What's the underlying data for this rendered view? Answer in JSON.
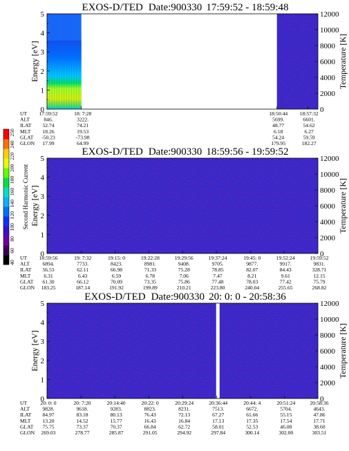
{
  "chart_data": [
    {
      "type": "heatmap",
      "title_parts": {
        "instrument": "EXOS-D/TED",
        "date": "Date:900330",
        "time_range": "17:59:52 - 18:59:48"
      },
      "ylabel": "Energy [eV]",
      "ylabel_right": "Temperature [K]",
      "ylim": [
        0,
        5
      ],
      "ylim_right": [
        0,
        12000
      ],
      "yticks": [
        "0",
        "1",
        "2",
        "3",
        "4",
        "5"
      ],
      "yticks_right": [
        "0",
        "2000",
        "4000",
        "6000",
        "8000",
        "10000",
        "12000"
      ],
      "row_labels": [
        "UT",
        "ALT",
        "ILAT",
        "MLT",
        "GLAT",
        "GLON"
      ],
      "columns": [
        {
          "values": [
            "17:59:52",
            "846.",
            "52.74",
            "18.26",
            "-50.23",
            "17.99"
          ]
        },
        {
          "values": [
            "18: 7:28",
            "3222.",
            "74.21",
            "19.53",
            "-73.98",
            "64.99"
          ]
        },
        {
          "values": [
            "18:50:44",
            "5699.",
            "48.77",
            "6.18",
            "54.24",
            "179.95"
          ]
        },
        {
          "values": [
            "18:57:32",
            "6601.",
            "54.62",
            "6.27",
            "59.59",
            "182.27"
          ]
        }
      ],
      "data_segments": [
        "17:59:52-18:07:28",
        "18:50:44-18:57:32"
      ]
    },
    {
      "type": "heatmap",
      "title_parts": {
        "instrument": "EXOS-D/TED",
        "date": "Date:900330",
        "time_range": "18:59:56 - 19:59:52"
      },
      "ylabel": "Energy [eV]",
      "ylabel_right": "Temperature [K]",
      "ylim": [
        0,
        5
      ],
      "ylim_right": [
        0,
        12000
      ],
      "yticks": [
        "0",
        "1",
        "2",
        "3",
        "4",
        "5"
      ],
      "yticks_right": [
        "0",
        "2000",
        "4000",
        "6000",
        "8000",
        "10000",
        "12000"
      ],
      "row_labels": [
        "UT",
        "ALT",
        "ILAT",
        "MLT",
        "GLAT",
        "GLON"
      ],
      "columns": [
        {
          "values": [
            "18:59:56",
            "6894.",
            "56.53",
            "6.31",
            "61.30",
            "183.25"
          ]
        },
        {
          "values": [
            "19: 7:32",
            "7733.",
            "62.11",
            "6.43",
            "66.12",
            "187.14"
          ]
        },
        {
          "values": [
            "19:15: 0",
            "8423.",
            "66.98",
            "6.59",
            "70.09",
            "191.92"
          ]
        },
        {
          "values": [
            "19:22:28",
            "8981.",
            "71.33",
            "6.78",
            "73.35",
            "199.89"
          ]
        },
        {
          "values": [
            "19:29:56",
            "9408.",
            "75.28",
            "7.06",
            "75.86",
            "210.21"
          ]
        },
        {
          "values": [
            "19:37:24",
            "9705.",
            "78.85",
            "7.47",
            "77.48",
            "223.80"
          ]
        },
        {
          "values": [
            "19:45: 0",
            "9877.",
            "82.07",
            "8.21",
            "78.03",
            "240.04"
          ]
        },
        {
          "values": [
            "19:52:24",
            "9917.",
            "84.43",
            "9.61",
            "77.42",
            "255.65"
          ]
        },
        {
          "values": [
            "19:59:52",
            "9831.",
            "328.71",
            "12.15",
            "75.79",
            "268.82"
          ]
        }
      ]
    },
    {
      "type": "heatmap",
      "title_parts": {
        "instrument": "EXOS-D/TED",
        "date": "Date:900330",
        "time_range": "20: 0: 0 - 20:58:36"
      },
      "ylabel": "Energy [eV]",
      "ylabel_right": "Temperature [K]",
      "ylim": [
        0,
        5
      ],
      "ylim_right": [
        0,
        12000
      ],
      "yticks": [
        "0",
        "1",
        "2",
        "3",
        "4",
        "5"
      ],
      "yticks_right": [
        "0",
        "2000",
        "4000",
        "6000",
        "8000",
        "10000",
        "12000"
      ],
      "row_labels": [
        "UT",
        "ALT",
        "ILAT",
        "MLT",
        "GLAT",
        "GLON"
      ],
      "columns": [
        {
          "values": [
            "20: 0: 0",
            "9828.",
            "84.97",
            "13.20",
            "75.75",
            "269.03"
          ]
        },
        {
          "values": [
            "20: 7:20",
            "9618.",
            "83.18",
            "14.52",
            "73.37",
            "278.77"
          ]
        },
        {
          "values": [
            "20:14:40",
            "9283.",
            "80.13",
            "15.77",
            "70.37",
            "285.87"
          ]
        },
        {
          "values": [
            "20:22: 0",
            "8823.",
            "76.43",
            "16.43",
            "66.84",
            "291.05"
          ]
        },
        {
          "values": [
            "20:29:24",
            "8231.",
            "72.13",
            "16.84",
            "62.72",
            "294.92"
          ]
        },
        {
          "values": [
            "20:36:44",
            "7513.",
            "67.27",
            "17.13",
            "58.01",
            "297.84"
          ]
        },
        {
          "values": [
            "20:44: 4",
            "6672.",
            "61.66",
            "17.35",
            "52.53",
            "300.14"
          ]
        },
        {
          "values": [
            "20:51:24",
            "5704.",
            "55.15",
            "17.54",
            "46.08",
            "302.00"
          ]
        },
        {
          "values": [
            "20:58:36",
            "4643.",
            "47.86",
            "17.71",
            "38.60",
            "303.51"
          ]
        }
      ],
      "data_gap_at": "20:36:44"
    }
  ],
  "colorbar": {
    "label": "Second Harmonic Current",
    "ticks": [
      "40",
      "60",
      "80",
      "100",
      "120",
      "140",
      "160",
      "180",
      "200",
      "220",
      "240",
      "250"
    ],
    "colors": [
      "#000000",
      "#3c0050",
      "#6a00a0",
      "#3a10c8",
      "#1030ff",
      "#0070ff",
      "#00b4ff",
      "#00e0c0",
      "#00e040",
      "#60ff00",
      "#e0ff00",
      "#ffd000",
      "#ff7000",
      "#ff0000"
    ],
    "fill_color": "#3a28c8"
  }
}
